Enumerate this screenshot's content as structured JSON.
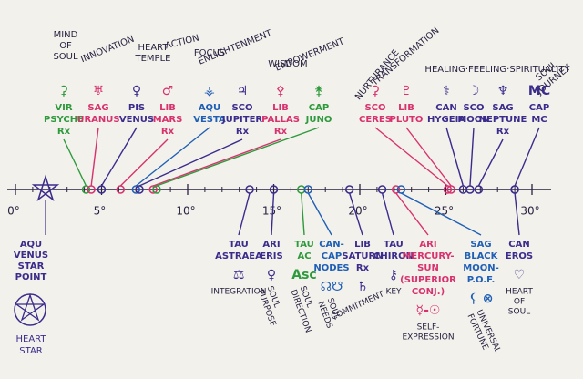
{
  "axis": {
    "ticks": [
      "0°",
      "5°",
      "10°",
      "15°",
      "20°",
      "25°",
      "30°"
    ]
  },
  "themes": [
    {
      "lines": [
        "MIND",
        "OF",
        "SOUL"
      ]
    },
    {
      "lines": [
        "INNOVATION"
      ]
    },
    {
      "lines": [
        "HEART",
        "TEMPLE"
      ]
    },
    {
      "lines": [
        "ACTION"
      ]
    },
    {
      "lines": [
        "FOCUS"
      ]
    },
    {
      "lines": [
        "ENLIGHTENMENT"
      ]
    },
    {
      "lines": [
        "WISDOM"
      ]
    },
    {
      "lines": [
        "EMPOWERMENT"
      ]
    },
    {
      "lines": [
        "NURTURANCE"
      ]
    },
    {
      "lines": [
        "TRANSFORMATION"
      ]
    },
    {
      "lines": [
        "HEALING·FEELING·SPIRITUALITY"
      ]
    },
    {
      "lines": [
        "SOUL",
        "JOURNEY"
      ]
    }
  ],
  "top_points": [
    {
      "glyph": "⚳",
      "lines": [
        "VIR",
        "PSYCHE",
        "Rx"
      ],
      "degree": 4.1,
      "color": "#2e9a3c"
    },
    {
      "glyph": "♅",
      "lines": [
        "SAG",
        "URANUS"
      ],
      "degree": 4.4,
      "color": "#d8326e"
    },
    {
      "glyph": "♀",
      "lines": [
        "PIS",
        "VENUS"
      ],
      "degree": 5.0,
      "color": "#3b2c8c"
    },
    {
      "glyph": "♂",
      "lines": [
        "LIB",
        "MARS",
        "Rx"
      ],
      "degree": 6.1,
      "color": "#d8326e"
    },
    {
      "glyph": "⚶",
      "lines": [
        "AQU",
        "VESTA"
      ],
      "degree": 7.0,
      "color": "#1f5fb5"
    },
    {
      "glyph": "♃",
      "lines": [
        "SCO",
        "JUPITER",
        "Rx"
      ],
      "degree": 7.2,
      "color": "#3b2c8c"
    },
    {
      "glyph": "⚴",
      "lines": [
        "LIB",
        "PALLAS",
        "Rx"
      ],
      "degree": 8.0,
      "color": "#d8326e"
    },
    {
      "glyph": "⚵",
      "lines": [
        "CAP",
        "JUNO"
      ],
      "degree": 8.2,
      "color": "#2e9a3c"
    },
    {
      "glyph": "⚳",
      "lines": [
        "SCO",
        "CERES"
      ],
      "degree": 25.1,
      "color": "#d8326e"
    },
    {
      "glyph": "♇",
      "lines": [
        "LIB",
        "PLUTO"
      ],
      "degree": 25.3,
      "color": "#d8326e"
    },
    {
      "glyph": "⚕",
      "lines": [
        "CAN",
        "HYGEIA"
      ],
      "degree": 26.0,
      "color": "#3b2c8c"
    },
    {
      "glyph": "☽",
      "lines": [
        "SCO",
        "MOON"
      ],
      "degree": 26.4,
      "color": "#3b2c8c"
    },
    {
      "glyph": "♆",
      "lines": [
        "SAG",
        "NEPTUNE",
        "Rx"
      ],
      "degree": 26.9,
      "color": "#3b2c8c"
    },
    {
      "glyph": "MC",
      "lines": [
        "CAP",
        "MC"
      ],
      "degree": 29.0,
      "color": "#3b2c8c"
    }
  ],
  "star": {
    "lines": [
      "AQU",
      "VENUS",
      "STAR",
      "POINT"
    ],
    "caption": [
      "HEART",
      "STAR"
    ],
    "degree": 0.9,
    "color": "#3b2c8c"
  },
  "bottom_points": [
    {
      "lines": [
        "TAU",
        "ASTRAEA"
      ],
      "glyph": "⚖",
      "theme": [
        "INTEGRATION"
      ],
      "degree": 13.6,
      "color": "#3b2c8c"
    },
    {
      "lines": [
        "ARI",
        "ERIS"
      ],
      "glyph": "♀",
      "theme": [
        "SOUL",
        "PURPOSE"
      ],
      "degree": 15.0,
      "color": "#3b2c8c"
    },
    {
      "lines": [
        "TAU",
        "AC"
      ],
      "glyph": "Asc",
      "theme": [
        "SOUL",
        "DIRECTION"
      ],
      "degree": 16.6,
      "color": "#2e9a3c"
    },
    {
      "lines": [
        "CAN-",
        "CAP",
        "NODES"
      ],
      "glyph": "☊☋",
      "theme": [
        "SOUL",
        "NEEDS"
      ],
      "degree": 17.0,
      "color": "#1f5fb5"
    },
    {
      "lines": [
        "LIB",
        "SATURN",
        "Rx"
      ],
      "glyph": "♄",
      "theme": [
        "COMMITMENT"
      ],
      "degree": 19.4,
      "color": "#3b2c8c"
    },
    {
      "lines": [
        "TAU",
        "CHIRON"
      ],
      "glyph": "⚷",
      "theme": [
        "KEY"
      ],
      "degree": 21.3,
      "color": "#3b2c8c"
    },
    {
      "lines": [
        "ARI",
        "MERCURY-",
        "SUN",
        "(SUPERIOR",
        "CONJ.)"
      ],
      "glyph": "☿-☉",
      "theme": [
        "SELF-",
        "EXPRESSION"
      ],
      "degree": 22.1,
      "color": "#d8326e"
    },
    {
      "lines": [
        "SAG",
        "BLACK",
        "MOON-",
        "P.O.F."
      ],
      "glyph": "⚸ ⊗",
      "theme": [
        "UNIVERSAL",
        "FORTUNE"
      ],
      "degree": 22.4,
      "color": "#1f5fb5"
    },
    {
      "lines": [
        "CAN",
        "EROS"
      ],
      "glyph": "♡",
      "theme": [
        "HEART",
        "OF",
        "SOUL"
      ],
      "degree": 29.0,
      "color": "#3b2c8c"
    }
  ]
}
